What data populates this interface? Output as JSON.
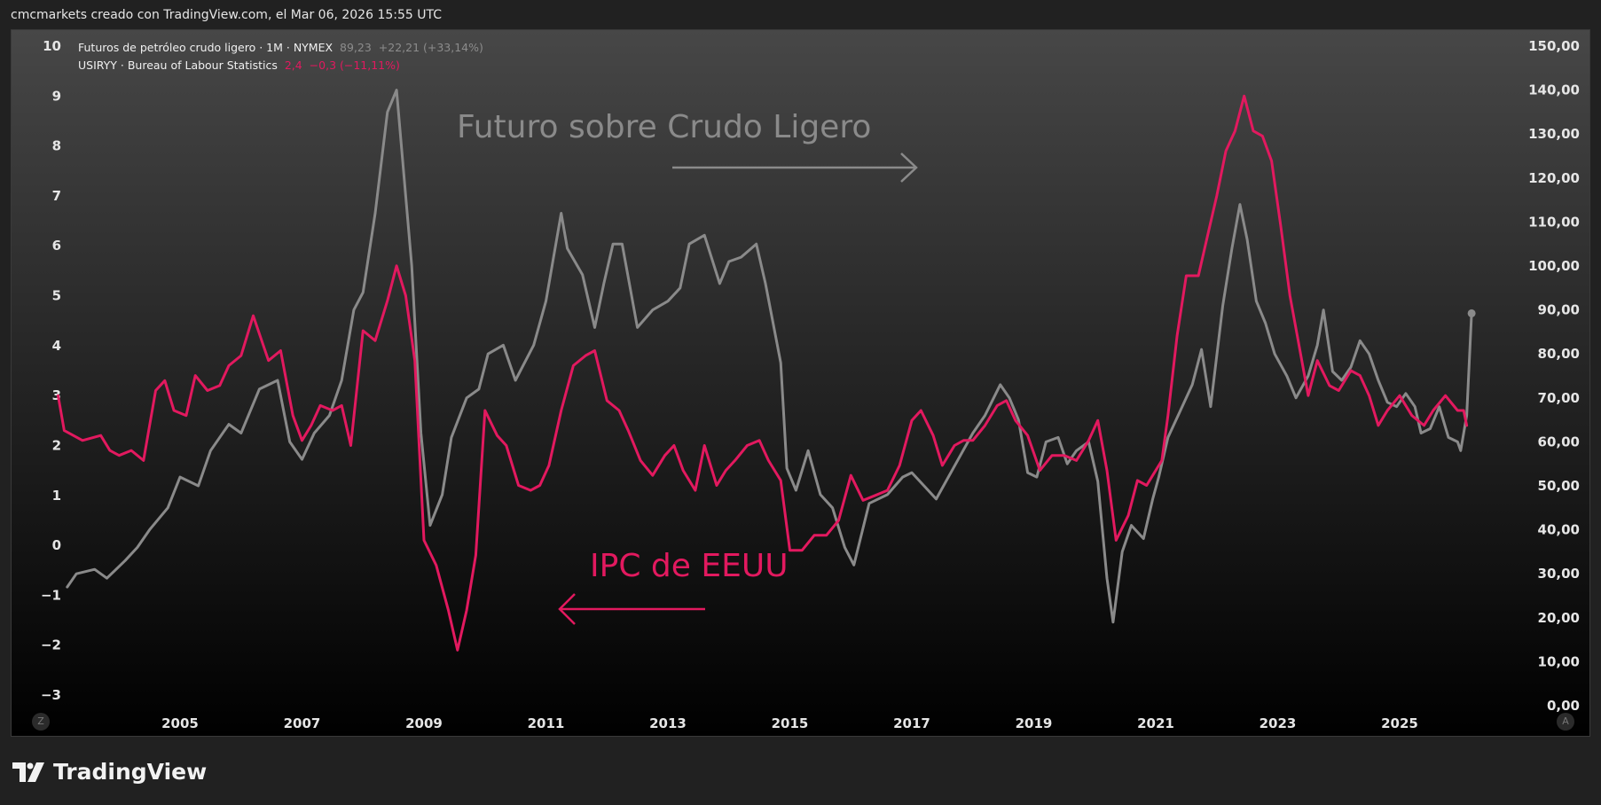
{
  "header": {
    "caption": "cmcmarkets creado con TradingView.com, el Mar 06, 2026 15:55 UTC"
  },
  "legend": {
    "oil": {
      "name": "Futuros de petróleo crudo ligero · 1M · NYMEX",
      "price": "89,23",
      "change": "+22,21 (+33,14%)"
    },
    "cpi": {
      "name": "USIRYY · Bureau of Labour Statistics",
      "price": "2,4",
      "change": "−0,3 (−11,11%)"
    }
  },
  "annotations": {
    "oil_label": "Futuro sobre Crudo Ligero",
    "cpi_label": "IPC de EEUU"
  },
  "buttons": {
    "left": "Z",
    "right": "A"
  },
  "brand": {
    "name": "TradingView"
  },
  "colors": {
    "background_top": "#474747",
    "background_bottom": "#000000",
    "oil": "#8a8a8a",
    "cpi": "#e2195f",
    "axis_text": "#e6e6e6"
  },
  "chart_data": {
    "type": "line",
    "x_unit": "year",
    "x_ticks": [
      2005,
      2007,
      2009,
      2011,
      2013,
      2015,
      2017,
      2019,
      2021,
      2023,
      2025
    ],
    "y_left": {
      "min": -3,
      "max": 10,
      "ticks": [
        10,
        9,
        8,
        7,
        6,
        5,
        4,
        3,
        2,
        1,
        0,
        -1,
        -2,
        -3
      ],
      "tick_labels": [
        "10",
        "9",
        "8",
        "7",
        "6",
        "5",
        "4",
        "3",
        "2",
        "1",
        "0",
        "−1",
        "−2",
        "−3"
      ]
    },
    "y_right": {
      "min": 0,
      "max": 150,
      "ticks": [
        150,
        140,
        130,
        120,
        110,
        100,
        90,
        80,
        70,
        60,
        50,
        40,
        30,
        20,
        10,
        0
      ],
      "tick_labels": [
        "150,00",
        "140,00",
        "130,00",
        "120,00",
        "110,00",
        "100,00",
        "90,00",
        "80,00",
        "70,00",
        "60,00",
        "50,00",
        "40,00",
        "30,00",
        "20,00",
        "10,00",
        "0,00"
      ]
    },
    "grid": false,
    "series": [
      {
        "name": "Futuros de petróleo crudo ligero · 1M · NYMEX",
        "axis": "right",
        "points": [
          [
            2003.15,
            27
          ],
          [
            2003.3,
            30
          ],
          [
            2003.6,
            31
          ],
          [
            2003.8,
            29
          ],
          [
            2004.1,
            33
          ],
          [
            2004.3,
            36
          ],
          [
            2004.5,
            40
          ],
          [
            2004.8,
            45
          ],
          [
            2005.0,
            52
          ],
          [
            2005.3,
            50
          ],
          [
            2005.5,
            58
          ],
          [
            2005.8,
            64
          ],
          [
            2006.0,
            62
          ],
          [
            2006.3,
            72
          ],
          [
            2006.6,
            74
          ],
          [
            2006.8,
            60
          ],
          [
            2007.0,
            56
          ],
          [
            2007.2,
            62
          ],
          [
            2007.45,
            66
          ],
          [
            2007.65,
            74
          ],
          [
            2007.85,
            90
          ],
          [
            2008.0,
            94
          ],
          [
            2008.2,
            112
          ],
          [
            2008.4,
            135
          ],
          [
            2008.55,
            140
          ],
          [
            2008.8,
            100
          ],
          [
            2008.95,
            62
          ],
          [
            2009.1,
            41
          ],
          [
            2009.3,
            48
          ],
          [
            2009.45,
            61
          ],
          [
            2009.7,
            70
          ],
          [
            2009.9,
            72
          ],
          [
            2010.05,
            80
          ],
          [
            2010.3,
            82
          ],
          [
            2010.5,
            74
          ],
          [
            2010.8,
            82
          ],
          [
            2011.0,
            92
          ],
          [
            2011.25,
            112
          ],
          [
            2011.35,
            104
          ],
          [
            2011.6,
            98
          ],
          [
            2011.8,
            86
          ],
          [
            2011.95,
            96
          ],
          [
            2012.1,
            105
          ],
          [
            2012.25,
            105
          ],
          [
            2012.5,
            86
          ],
          [
            2012.75,
            90
          ],
          [
            2013.0,
            92
          ],
          [
            2013.2,
            95
          ],
          [
            2013.35,
            105
          ],
          [
            2013.6,
            107
          ],
          [
            2013.85,
            96
          ],
          [
            2014.0,
            101
          ],
          [
            2014.2,
            102
          ],
          [
            2014.45,
            105
          ],
          [
            2014.6,
            96
          ],
          [
            2014.85,
            78
          ],
          [
            2014.95,
            54
          ],
          [
            2015.1,
            49
          ],
          [
            2015.3,
            58
          ],
          [
            2015.5,
            48
          ],
          [
            2015.7,
            45
          ],
          [
            2015.9,
            36
          ],
          [
            2016.05,
            32
          ],
          [
            2016.3,
            46
          ],
          [
            2016.6,
            48
          ],
          [
            2016.85,
            52
          ],
          [
            2017.0,
            53
          ],
          [
            2017.2,
            50
          ],
          [
            2017.4,
            47
          ],
          [
            2017.6,
            52
          ],
          [
            2017.8,
            57
          ],
          [
            2018.0,
            62
          ],
          [
            2018.2,
            66
          ],
          [
            2018.45,
            73
          ],
          [
            2018.6,
            70
          ],
          [
            2018.75,
            65
          ],
          [
            2018.9,
            53
          ],
          [
            2019.05,
            52
          ],
          [
            2019.2,
            60
          ],
          [
            2019.4,
            61
          ],
          [
            2019.55,
            55
          ],
          [
            2019.7,
            58
          ],
          [
            2019.9,
            60
          ],
          [
            2020.05,
            51
          ],
          [
            2020.2,
            29
          ],
          [
            2020.3,
            19
          ],
          [
            2020.45,
            35
          ],
          [
            2020.6,
            41
          ],
          [
            2020.8,
            38
          ],
          [
            2020.95,
            47
          ],
          [
            2021.05,
            52
          ],
          [
            2021.2,
            61
          ],
          [
            2021.4,
            67
          ],
          [
            2021.6,
            73
          ],
          [
            2021.75,
            81
          ],
          [
            2021.9,
            68
          ],
          [
            2022.1,
            91
          ],
          [
            2022.25,
            104
          ],
          [
            2022.38,
            114
          ],
          [
            2022.5,
            106
          ],
          [
            2022.65,
            92
          ],
          [
            2022.8,
            87
          ],
          [
            2022.95,
            80
          ],
          [
            2023.15,
            75
          ],
          [
            2023.3,
            70
          ],
          [
            2023.5,
            75
          ],
          [
            2023.65,
            82
          ],
          [
            2023.75,
            90
          ],
          [
            2023.9,
            76
          ],
          [
            2024.05,
            74
          ],
          [
            2024.2,
            77
          ],
          [
            2024.35,
            83
          ],
          [
            2024.5,
            80
          ],
          [
            2024.65,
            74
          ],
          [
            2024.8,
            69
          ],
          [
            2024.95,
            68
          ],
          [
            2025.1,
            71
          ],
          [
            2025.25,
            68
          ],
          [
            2025.35,
            62
          ],
          [
            2025.5,
            63
          ],
          [
            2025.65,
            68
          ],
          [
            2025.8,
            61
          ],
          [
            2025.95,
            60
          ],
          [
            2026.0,
            58
          ],
          [
            2026.1,
            66
          ],
          [
            2026.18,
            89.23
          ]
        ]
      },
      {
        "name": "USIRYY · Bureau of Labour Statistics",
        "axis": "left",
        "points": [
          [
            2003.0,
            3.0
          ],
          [
            2003.1,
            2.3
          ],
          [
            2003.4,
            2.1
          ],
          [
            2003.7,
            2.2
          ],
          [
            2003.85,
            1.9
          ],
          [
            2004.0,
            1.8
          ],
          [
            2004.2,
            1.9
          ],
          [
            2004.4,
            1.7
          ],
          [
            2004.6,
            3.1
          ],
          [
            2004.75,
            3.3
          ],
          [
            2004.9,
            2.7
          ],
          [
            2005.1,
            2.6
          ],
          [
            2005.25,
            3.4
          ],
          [
            2005.45,
            3.1
          ],
          [
            2005.65,
            3.2
          ],
          [
            2005.8,
            3.6
          ],
          [
            2006.0,
            3.8
          ],
          [
            2006.2,
            4.6
          ],
          [
            2006.45,
            3.7
          ],
          [
            2006.65,
            3.9
          ],
          [
            2006.85,
            2.6
          ],
          [
            2007.0,
            2.1
          ],
          [
            2007.15,
            2.4
          ],
          [
            2007.3,
            2.8
          ],
          [
            2007.5,
            2.7
          ],
          [
            2007.65,
            2.8
          ],
          [
            2007.8,
            2.0
          ],
          [
            2008.0,
            4.3
          ],
          [
            2008.2,
            4.1
          ],
          [
            2008.4,
            4.9
          ],
          [
            2008.55,
            5.6
          ],
          [
            2008.7,
            5.0
          ],
          [
            2008.85,
            3.7
          ],
          [
            2009.0,
            0.1
          ],
          [
            2009.2,
            -0.4
          ],
          [
            2009.4,
            -1.3
          ],
          [
            2009.55,
            -2.1
          ],
          [
            2009.7,
            -1.3
          ],
          [
            2009.85,
            -0.2
          ],
          [
            2010.0,
            2.7
          ],
          [
            2010.2,
            2.2
          ],
          [
            2010.35,
            2.0
          ],
          [
            2010.55,
            1.2
          ],
          [
            2010.75,
            1.1
          ],
          [
            2010.9,
            1.2
          ],
          [
            2011.05,
            1.6
          ],
          [
            2011.25,
            2.7
          ],
          [
            2011.45,
            3.6
          ],
          [
            2011.65,
            3.8
          ],
          [
            2011.8,
            3.9
          ],
          [
            2012.0,
            2.9
          ],
          [
            2012.2,
            2.7
          ],
          [
            2012.35,
            2.3
          ],
          [
            2012.55,
            1.7
          ],
          [
            2012.75,
            1.4
          ],
          [
            2012.95,
            1.8
          ],
          [
            2013.1,
            2.0
          ],
          [
            2013.25,
            1.5
          ],
          [
            2013.45,
            1.1
          ],
          [
            2013.6,
            2.0
          ],
          [
            2013.8,
            1.2
          ],
          [
            2013.95,
            1.5
          ],
          [
            2014.1,
            1.7
          ],
          [
            2014.3,
            2.0
          ],
          [
            2014.5,
            2.1
          ],
          [
            2014.65,
            1.7
          ],
          [
            2014.85,
            1.3
          ],
          [
            2015.0,
            -0.1
          ],
          [
            2015.2,
            -0.1
          ],
          [
            2015.4,
            0.2
          ],
          [
            2015.6,
            0.2
          ],
          [
            2015.8,
            0.5
          ],
          [
            2016.0,
            1.4
          ],
          [
            2016.2,
            0.9
          ],
          [
            2016.4,
            1.0
          ],
          [
            2016.6,
            1.1
          ],
          [
            2016.8,
            1.6
          ],
          [
            2017.0,
            2.5
          ],
          [
            2017.15,
            2.7
          ],
          [
            2017.35,
            2.2
          ],
          [
            2017.5,
            1.6
          ],
          [
            2017.7,
            2.0
          ],
          [
            2017.85,
            2.1
          ],
          [
            2018.0,
            2.1
          ],
          [
            2018.2,
            2.4
          ],
          [
            2018.4,
            2.8
          ],
          [
            2018.55,
            2.9
          ],
          [
            2018.7,
            2.5
          ],
          [
            2018.9,
            2.2
          ],
          [
            2019.1,
            1.5
          ],
          [
            2019.3,
            1.8
          ],
          [
            2019.5,
            1.8
          ],
          [
            2019.7,
            1.7
          ],
          [
            2019.9,
            2.1
          ],
          [
            2020.05,
            2.5
          ],
          [
            2020.2,
            1.5
          ],
          [
            2020.35,
            0.1
          ],
          [
            2020.55,
            0.6
          ],
          [
            2020.7,
            1.3
          ],
          [
            2020.85,
            1.2
          ],
          [
            2020.95,
            1.4
          ],
          [
            2021.1,
            1.7
          ],
          [
            2021.2,
            2.6
          ],
          [
            2021.35,
            4.2
          ],
          [
            2021.5,
            5.4
          ],
          [
            2021.7,
            5.4
          ],
          [
            2021.85,
            6.2
          ],
          [
            2022.0,
            7.0
          ],
          [
            2022.15,
            7.9
          ],
          [
            2022.3,
            8.3
          ],
          [
            2022.45,
            9.0
          ],
          [
            2022.6,
            8.3
          ],
          [
            2022.75,
            8.2
          ],
          [
            2022.9,
            7.7
          ],
          [
            2023.05,
            6.4
          ],
          [
            2023.2,
            5.0
          ],
          [
            2023.35,
            4.0
          ],
          [
            2023.5,
            3.0
          ],
          [
            2023.65,
            3.7
          ],
          [
            2023.85,
            3.2
          ],
          [
            2024.0,
            3.1
          ],
          [
            2024.2,
            3.5
          ],
          [
            2024.35,
            3.4
          ],
          [
            2024.5,
            3.0
          ],
          [
            2024.65,
            2.4
          ],
          [
            2024.8,
            2.7
          ],
          [
            2025.0,
            3.0
          ],
          [
            2025.2,
            2.6
          ],
          [
            2025.4,
            2.4
          ],
          [
            2025.55,
            2.7
          ],
          [
            2025.75,
            3.0
          ],
          [
            2025.95,
            2.7
          ],
          [
            2026.05,
            2.7
          ],
          [
            2026.1,
            2.4
          ]
        ]
      }
    ]
  }
}
